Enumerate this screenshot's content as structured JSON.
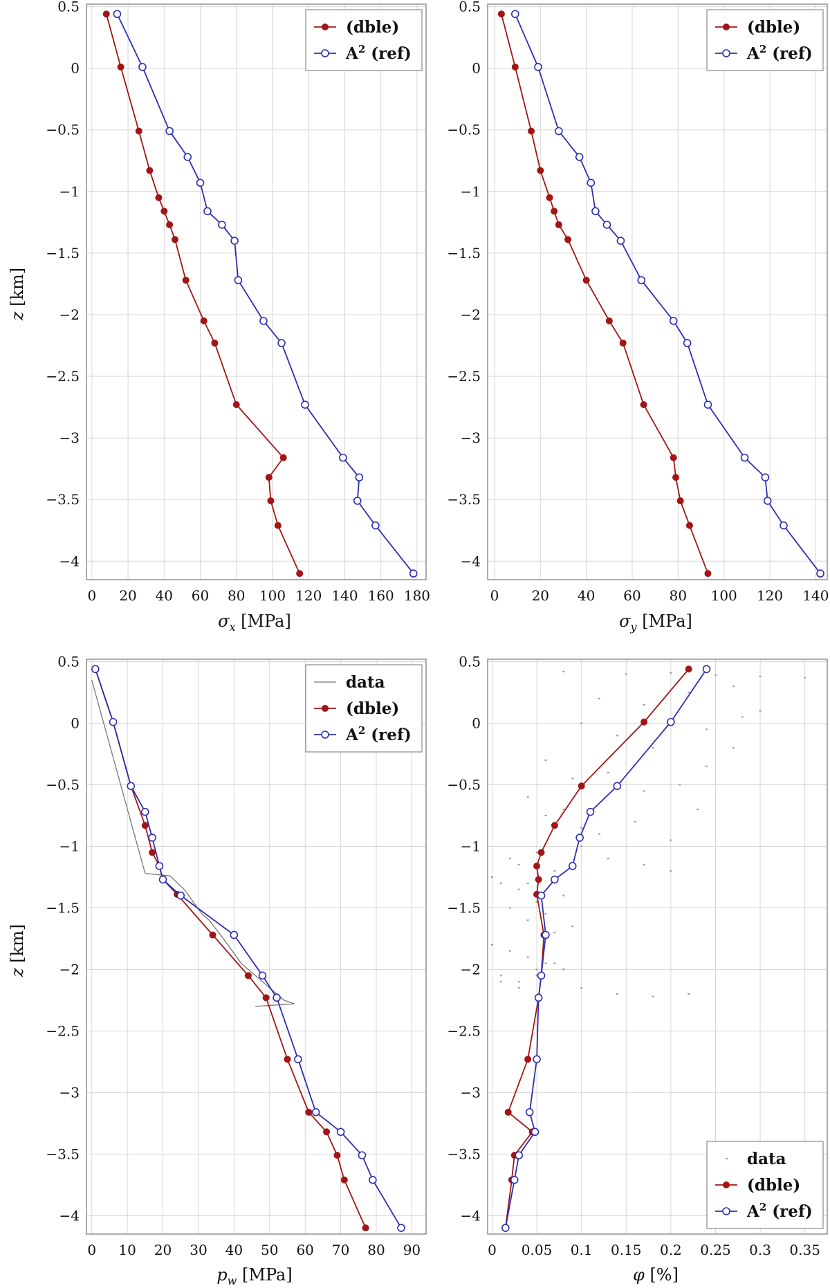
{
  "chart_data": [
    {
      "type": "line",
      "xlabel": "σx [MPa]",
      "ylabel": "z [km]",
      "xlim": [
        -3,
        185
      ],
      "ylim": [
        -4.15,
        0.52
      ],
      "xticks": [
        0,
        20,
        40,
        60,
        80,
        100,
        120,
        140,
        160,
        180
      ],
      "yticks": [
        0.5,
        0,
        -0.5,
        -1,
        -1.5,
        -2,
        -2.5,
        -3,
        -3.5,
        -4
      ],
      "grid": true,
      "legend_position": "top-right",
      "legend": [
        "(dble)",
        "A² (ref)"
      ],
      "series": [
        {
          "name": "(dble)",
          "color": "#a31515",
          "marker": "filled-circle",
          "x": [
            8,
            16,
            26,
            32,
            37,
            40,
            43,
            46,
            52,
            62,
            68,
            80,
            106,
            98,
            99,
            103,
            115
          ],
          "z": [
            0.44,
            0.01,
            -0.51,
            -0.83,
            -1.05,
            -1.16,
            -1.27,
            -1.39,
            -1.72,
            -2.05,
            -2.23,
            -2.73,
            -3.16,
            -3.32,
            -3.51,
            -3.71,
            -4.1
          ]
        },
        {
          "name": "A² (ref)",
          "color": "#2b2fb0",
          "marker": "open-circle",
          "x": [
            14,
            28,
            43,
            53,
            60,
            64,
            72,
            79,
            81,
            95,
            105,
            118,
            139,
            148,
            147,
            157,
            178
          ],
          "z": [
            0.44,
            0.01,
            -0.51,
            -0.72,
            -0.93,
            -1.16,
            -1.27,
            -1.4,
            -1.72,
            -2.05,
            -2.23,
            -2.73,
            -3.16,
            -3.32,
            -3.51,
            -3.71,
            -4.1
          ]
        }
      ]
    },
    {
      "type": "line",
      "xlabel": "σy [MPa]",
      "ylabel": "",
      "xlim": [
        -3,
        145
      ],
      "ylim": [
        -4.15,
        0.52
      ],
      "xticks": [
        0,
        20,
        40,
        60,
        80,
        100,
        120,
        140
      ],
      "yticks": [
        0.5,
        0,
        -0.5,
        -1,
        -1.5,
        -2,
        -2.5,
        -3,
        -3.5,
        -4
      ],
      "grid": true,
      "legend_position": "top-right",
      "legend": [
        "(dble)",
        "A² (ref)"
      ],
      "series": [
        {
          "name": "(dble)",
          "color": "#a31515",
          "marker": "filled-circle",
          "x": [
            3,
            9,
            16,
            20,
            24,
            26,
            28,
            32,
            40,
            50,
            56,
            65,
            78,
            79,
            81,
            85,
            93
          ],
          "z": [
            0.44,
            0.01,
            -0.51,
            -0.83,
            -1.05,
            -1.16,
            -1.27,
            -1.39,
            -1.72,
            -2.05,
            -2.23,
            -2.73,
            -3.16,
            -3.32,
            -3.51,
            -3.71,
            -4.1
          ]
        },
        {
          "name": "A² (ref)",
          "color": "#2b2fb0",
          "marker": "open-circle",
          "x": [
            9,
            19,
            28,
            37,
            42,
            44,
            49,
            55,
            64,
            78,
            84,
            93,
            109,
            118,
            119,
            126,
            142
          ],
          "z": [
            0.44,
            0.01,
            -0.51,
            -0.72,
            -0.93,
            -1.16,
            -1.27,
            -1.4,
            -1.72,
            -2.05,
            -2.23,
            -2.73,
            -3.16,
            -3.32,
            -3.51,
            -3.71,
            -4.1
          ]
        }
      ]
    },
    {
      "type": "line",
      "xlabel": "pw [MPa]",
      "ylabel": "z [km]",
      "xlim": [
        -1.5,
        94
      ],
      "ylim": [
        -4.15,
        0.52
      ],
      "xticks": [
        0,
        10,
        20,
        30,
        40,
        50,
        60,
        70,
        80,
        90
      ],
      "yticks": [
        0.5,
        0,
        -0.5,
        -1,
        -1.5,
        -2,
        -2.5,
        -3,
        -3.5,
        -4
      ],
      "grid": true,
      "legend_position": "top-right",
      "legend": [
        "data",
        "(dble)",
        "A² (ref)"
      ],
      "series": [
        {
          "name": "data",
          "color": "#777777",
          "marker": "none",
          "x": [
            0,
            15,
            22,
            26,
            31,
            33,
            37,
            42,
            46,
            50,
            54,
            57,
            46
          ],
          "z": [
            0.35,
            -1.22,
            -1.24,
            -1.35,
            -1.55,
            -1.6,
            -1.75,
            -1.95,
            -2.05,
            -2.15,
            -2.25,
            -2.28,
            -2.3
          ]
        },
        {
          "name": "(dble)",
          "color": "#a31515",
          "marker": "filled-circle",
          "x": [
            1,
            6,
            11,
            15,
            17,
            19,
            20,
            24,
            34,
            44,
            49,
            55,
            61,
            66,
            69,
            71,
            77
          ],
          "z": [
            0.44,
            0.01,
            -0.51,
            -0.83,
            -1.05,
            -1.16,
            -1.27,
            -1.39,
            -1.72,
            -2.05,
            -2.23,
            -2.73,
            -3.16,
            -3.32,
            -3.51,
            -3.71,
            -4.1
          ]
        },
        {
          "name": "A² (ref)",
          "color": "#2b2fb0",
          "marker": "open-circle",
          "x": [
            1,
            6,
            11,
            15,
            17,
            19,
            20,
            25,
            40,
            48,
            52,
            58,
            63,
            70,
            76,
            79,
            87
          ],
          "z": [
            0.44,
            0.01,
            -0.51,
            -0.72,
            -0.93,
            -1.16,
            -1.27,
            -1.4,
            -1.72,
            -2.05,
            -2.23,
            -2.73,
            -3.16,
            -3.32,
            -3.51,
            -3.71,
            -4.1
          ]
        }
      ]
    },
    {
      "type": "scatter",
      "xlabel": "φ [%]",
      "ylabel": "",
      "xlim": [
        -0.005,
        0.375
      ],
      "ylim": [
        -4.15,
        0.52
      ],
      "xticks": [
        0,
        0.05,
        0.1,
        0.15,
        0.2,
        0.25,
        0.3,
        0.35
      ],
      "xticklabels": [
        "0",
        "0.05",
        "0.1",
        "0.15",
        "0.2",
        "0.25",
        "0.3",
        "0.35"
      ],
      "yticks": [
        0.5,
        0,
        -0.5,
        -1,
        -1.5,
        -2,
        -2.5,
        -3,
        -3.5,
        -4
      ],
      "grid": true,
      "legend_position": "bottom-right",
      "legend": [
        "data",
        "(dble)",
        "A² (ref)"
      ],
      "series": [
        {
          "name": "data",
          "color": "#999999",
          "marker": "dot",
          "x": [
            0.08,
            0.15,
            0.2,
            0.25,
            0.3,
            0.35,
            0.12,
            0.17,
            0.22,
            0.27,
            0.3,
            0.1,
            0.14,
            0.18,
            0.24,
            0.28,
            0.06,
            0.09,
            0.13,
            0.17,
            0.21,
            0.24,
            0.27,
            0.04,
            0.06,
            0.08,
            0.1,
            0.12,
            0.16,
            0.2,
            0.23,
            0.02,
            0.03,
            0.05,
            0.07,
            0.1,
            0.13,
            0.17,
            0.2,
            0.01,
            0.03,
            0.05,
            0.08,
            0.02,
            0.04,
            0.06,
            0.07,
            0.09,
            0.0,
            0.02,
            0.04,
            0.06,
            0.08,
            0.01,
            0.03,
            0.05,
            0.07,
            0.01,
            0.03,
            0.05,
            0.08,
            0.0,
            0.04,
            0.1,
            0.14,
            0.18,
            0.22
          ],
          "z": [
            0.42,
            0.4,
            0.41,
            0.39,
            0.38,
            0.37,
            0.2,
            0.15,
            0.25,
            0.3,
            0.1,
            0.0,
            -0.1,
            -0.2,
            -0.05,
            0.05,
            -0.3,
            -0.45,
            -0.4,
            -0.55,
            -0.5,
            -0.35,
            -0.2,
            -0.6,
            -0.75,
            -0.7,
            -0.85,
            -0.9,
            -0.8,
            -0.95,
            -0.7,
            -1.1,
            -1.15,
            -1.05,
            -1.2,
            -1.0,
            -1.1,
            -1.15,
            -1.2,
            -1.3,
            -1.35,
            -1.45,
            -1.4,
            -1.5,
            -1.6,
            -1.55,
            -1.7,
            -1.65,
            -1.8,
            -1.85,
            -1.9,
            -1.95,
            -2.0,
            -2.05,
            -2.1,
            -2.0,
            -1.95,
            -2.1,
            -2.15,
            -2.05,
            -2.0,
            -1.25,
            -1.3,
            -2.15,
            -2.2,
            -2.22,
            -2.2
          ]
        },
        {
          "name": "(dble)",
          "color": "#a31515",
          "marker": "filled-circle",
          "x": [
            0.22,
            0.17,
            0.1,
            0.07,
            0.055,
            0.05,
            0.052,
            0.05,
            0.058,
            0.055,
            0.052,
            0.04,
            0.018,
            0.045,
            0.025,
            0.022,
            0.015
          ],
          "z": [
            0.44,
            0.01,
            -0.51,
            -0.83,
            -1.05,
            -1.16,
            -1.27,
            -1.39,
            -1.72,
            -2.05,
            -2.23,
            -2.73,
            -3.16,
            -3.32,
            -3.51,
            -3.71,
            -4.1
          ]
        },
        {
          "name": "A² (ref)",
          "color": "#2b2fb0",
          "marker": "open-circle",
          "x": [
            0.24,
            0.2,
            0.14,
            0.11,
            0.098,
            0.09,
            0.07,
            0.055,
            0.06,
            0.055,
            0.052,
            0.05,
            0.042,
            0.048,
            0.03,
            0.025,
            0.015
          ],
          "z": [
            0.44,
            0.01,
            -0.51,
            -0.72,
            -0.93,
            -1.16,
            -1.27,
            -1.4,
            -1.72,
            -2.05,
            -2.23,
            -2.73,
            -3.16,
            -3.32,
            -3.51,
            -3.71,
            -4.1
          ]
        }
      ]
    }
  ],
  "labels": {
    "p1_xlabel_sym": "σ",
    "p1_xlabel_sub": "x",
    "p1_xlabel_unit": " [MPa]",
    "p2_xlabel_sym": "σ",
    "p2_xlabel_sub": "y",
    "p2_xlabel_unit": " [MPa]",
    "p3_xlabel_sym": "p",
    "p3_xlabel_sub": "w",
    "p3_xlabel_unit": " [MPa]",
    "p4_xlabel_sym": "φ",
    "p4_xlabel_unit": " [%]",
    "ylabel_sym": "z",
    "ylabel_unit": " [km]",
    "legend_data": "data",
    "legend_dble": "(dble)",
    "legend_ref_a": "A",
    "legend_ref_sup": "2",
    "legend_ref_b": " (ref)"
  }
}
